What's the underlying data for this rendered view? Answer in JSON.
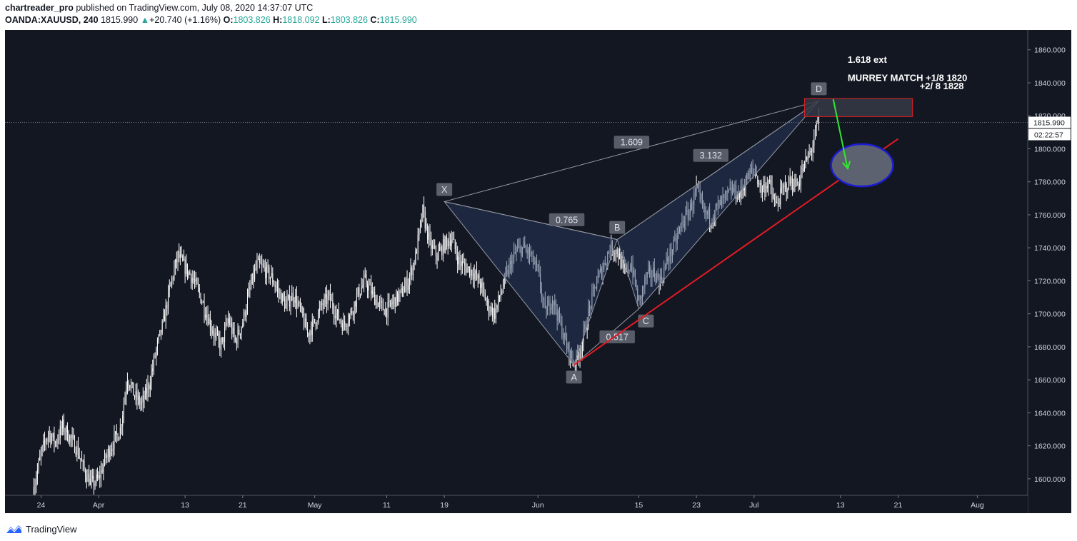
{
  "header": {
    "publisher": "chartreader_pro",
    "published_text": "published on TradingView.com, July 08, 2020 14:37:07 UTC",
    "symbol": "OANDA:XAUUSD, 240",
    "last": "1815.990",
    "change_arrow": "▲",
    "change": "+20.740 (+1.16%)",
    "o_label": "O:",
    "o_value": "1803.826",
    "h_label": "H:",
    "h_value": "1818.092",
    "l_label": "L:",
    "l_value": "1803.826",
    "c_label": "C:",
    "c_value": "1815.990"
  },
  "footer": {
    "brand": "TradingView",
    "logo_icon": "tradingview-logo-icon"
  },
  "colors": {
    "background": "#131722",
    "candle": "#ffffff",
    "pattern_fill": "#2a3e66",
    "pattern_line": "#9598a1",
    "trendline": "#e31b23",
    "box_border": "#e31b23",
    "arrow": "#2ee82e",
    "circle_border": "#1c1cd4",
    "circle_fill": "#5d6270"
  },
  "chart_data": {
    "type": "candlestick",
    "ylim": [
      1590,
      1872
    ],
    "y_ticks": [
      "1600.000",
      "1620.000",
      "1640.000",
      "1660.000",
      "1680.000",
      "1700.000",
      "1720.000",
      "1740.000",
      "1760.000",
      "1780.000",
      "1800.000",
      "1820.000",
      "1840.000",
      "1860.000"
    ],
    "x_ticks": [
      {
        "day": 0,
        "label": "24"
      },
      {
        "day": 8,
        "label": "Apr"
      },
      {
        "day": 20,
        "label": "13"
      },
      {
        "day": 28,
        "label": "21"
      },
      {
        "day": 38,
        "label": "May"
      },
      {
        "day": 48,
        "label": "11"
      },
      {
        "day": 56,
        "label": "19"
      },
      {
        "day": 69,
        "label": "Jun"
      },
      {
        "day": 83,
        "label": "15"
      },
      {
        "day": 91,
        "label": "23"
      },
      {
        "day": 99,
        "label": "Jul"
      },
      {
        "day": 111,
        "label": "13"
      },
      {
        "day": 119,
        "label": "21"
      },
      {
        "day": 130,
        "label": "Aug"
      }
    ],
    "x_range_days": [
      -5,
      137
    ],
    "last_price_label": "1815.990",
    "countdown_label": "02:22:57",
    "anchors": [
      {
        "day": -1,
        "price": 1595
      },
      {
        "day": 0,
        "price": 1615
      },
      {
        "day": 1,
        "price": 1628
      },
      {
        "day": 2,
        "price": 1622
      },
      {
        "day": 3,
        "price": 1632
      },
      {
        "day": 4,
        "price": 1625
      },
      {
        "day": 5,
        "price": 1618
      },
      {
        "day": 6,
        "price": 1605
      },
      {
        "day": 7,
        "price": 1597
      },
      {
        "day": 8,
        "price": 1600
      },
      {
        "day": 9,
        "price": 1613
      },
      {
        "day": 10,
        "price": 1622
      },
      {
        "day": 11,
        "price": 1630
      },
      {
        "day": 12,
        "price": 1662
      },
      {
        "day": 13,
        "price": 1650
      },
      {
        "day": 14,
        "price": 1645
      },
      {
        "day": 15,
        "price": 1657
      },
      {
        "day": 16,
        "price": 1678
      },
      {
        "day": 17,
        "price": 1695
      },
      {
        "day": 18,
        "price": 1718
      },
      {
        "day": 19,
        "price": 1735
      },
      {
        "day": 20,
        "price": 1728
      },
      {
        "day": 21,
        "price": 1722
      },
      {
        "day": 22,
        "price": 1712
      },
      {
        "day": 23,
        "price": 1700
      },
      {
        "day": 24,
        "price": 1688
      },
      {
        "day": 25,
        "price": 1680
      },
      {
        "day": 26,
        "price": 1697
      },
      {
        "day": 27,
        "price": 1683
      },
      {
        "day": 28,
        "price": 1695
      },
      {
        "day": 29,
        "price": 1715
      },
      {
        "day": 30,
        "price": 1730
      },
      {
        "day": 31,
        "price": 1727
      },
      {
        "day": 32,
        "price": 1722
      },
      {
        "day": 33,
        "price": 1713
      },
      {
        "day": 34,
        "price": 1705
      },
      {
        "day": 35,
        "price": 1712
      },
      {
        "day": 36,
        "price": 1702
      },
      {
        "day": 37,
        "price": 1688
      },
      {
        "day": 38,
        "price": 1695
      },
      {
        "day": 39,
        "price": 1705
      },
      {
        "day": 40,
        "price": 1710
      },
      {
        "day": 41,
        "price": 1700
      },
      {
        "day": 42,
        "price": 1693
      },
      {
        "day": 43,
        "price": 1700
      },
      {
        "day": 44,
        "price": 1712
      },
      {
        "day": 45,
        "price": 1720
      },
      {
        "day": 46,
        "price": 1712
      },
      {
        "day": 47,
        "price": 1705
      },
      {
        "day": 48,
        "price": 1702
      },
      {
        "day": 49,
        "price": 1708
      },
      {
        "day": 50,
        "price": 1712
      },
      {
        "day": 51,
        "price": 1720
      },
      {
        "day": 52,
        "price": 1735
      },
      {
        "day": 53,
        "price": 1762
      },
      {
        "day": 54,
        "price": 1742
      },
      {
        "day": 55,
        "price": 1735
      },
      {
        "day": 56,
        "price": 1742
      },
      {
        "day": 57,
        "price": 1746
      },
      {
        "day": 58,
        "price": 1732
      },
      {
        "day": 59,
        "price": 1728
      },
      {
        "day": 60,
        "price": 1725
      },
      {
        "day": 61,
        "price": 1718
      },
      {
        "day": 62,
        "price": 1705
      },
      {
        "day": 63,
        "price": 1700
      },
      {
        "day": 64,
        "price": 1715
      },
      {
        "day": 65,
        "price": 1728
      },
      {
        "day": 66,
        "price": 1738
      },
      {
        "day": 67,
        "price": 1740
      },
      {
        "day": 68,
        "price": 1735
      },
      {
        "day": 69,
        "price": 1725
      },
      {
        "day": 70,
        "price": 1700
      },
      {
        "day": 71,
        "price": 1710
      },
      {
        "day": 72,
        "price": 1695
      },
      {
        "day": 73,
        "price": 1680
      },
      {
        "day": 74,
        "price": 1670
      },
      {
        "day": 75,
        "price": 1680
      },
      {
        "day": 76,
        "price": 1700
      },
      {
        "day": 77,
        "price": 1718
      },
      {
        "day": 78,
        "price": 1728
      },
      {
        "day": 79,
        "price": 1740
      },
      {
        "day": 80,
        "price": 1738
      },
      {
        "day": 81,
        "price": 1725
      },
      {
        "day": 82,
        "price": 1730
      },
      {
        "day": 83,
        "price": 1706
      },
      {
        "day": 84,
        "price": 1722
      },
      {
        "day": 85,
        "price": 1725
      },
      {
        "day": 86,
        "price": 1720
      },
      {
        "day": 87,
        "price": 1733
      },
      {
        "day": 88,
        "price": 1742
      },
      {
        "day": 89,
        "price": 1755
      },
      {
        "day": 90,
        "price": 1762
      },
      {
        "day": 91,
        "price": 1775
      },
      {
        "day": 92,
        "price": 1762
      },
      {
        "day": 93,
        "price": 1758
      },
      {
        "day": 94,
        "price": 1765
      },
      {
        "day": 95,
        "price": 1770
      },
      {
        "day": 96,
        "price": 1775
      },
      {
        "day": 97,
        "price": 1772
      },
      {
        "day": 98,
        "price": 1782
      },
      {
        "day": 99,
        "price": 1788
      },
      {
        "day": 100,
        "price": 1775
      },
      {
        "day": 101,
        "price": 1780
      },
      {
        "day": 102,
        "price": 1765
      },
      {
        "day": 103,
        "price": 1775
      },
      {
        "day": 104,
        "price": 1780
      },
      {
        "day": 105,
        "price": 1778
      },
      {
        "day": 106,
        "price": 1790
      },
      {
        "day": 107,
        "price": 1800
      },
      {
        "day": 108,
        "price": 1818
      }
    ],
    "harmonic_pattern": {
      "points": [
        {
          "label": "X",
          "day": 56,
          "price": 1768
        },
        {
          "label": "A",
          "day": 74,
          "price": 1669
        },
        {
          "label": "B",
          "day": 80,
          "price": 1745
        },
        {
          "label": "C",
          "day": 83,
          "price": 1703
        },
        {
          "label": "D",
          "day": 108,
          "price": 1829
        }
      ],
      "ratios": [
        {
          "label": "0.765",
          "day": 73,
          "price": 1757
        },
        {
          "label": "0.517",
          "day": 80,
          "price": 1686
        },
        {
          "label": "1.609",
          "day": 82,
          "price": 1804
        },
        {
          "label": "3.132",
          "day": 93,
          "price": 1796
        }
      ]
    },
    "trendline": {
      "from": {
        "day": 74,
        "price": 1669
      },
      "to": {
        "day": 119,
        "price": 1806
      }
    },
    "target_box": {
      "day_start": 106,
      "day_end": 121,
      "price_low": 1819.5,
      "price_high": 1830.5
    },
    "arrow": {
      "from": {
        "day": 110,
        "price": 1830
      },
      "to": {
        "day": 112,
        "price": 1788
      }
    },
    "circle": {
      "day": 114,
      "price": 1790,
      "rx_days": 4.3,
      "ry_price": 12.8
    },
    "annotations": [
      {
        "text": "1.618 ext",
        "day": 112,
        "price": 1852
      },
      {
        "text": "MURREY MATCH +1/8 1820",
        "day": 112,
        "price": 1841
      },
      {
        "text": "+2/ 8 1828",
        "day": 122,
        "price": 1836
      }
    ]
  }
}
